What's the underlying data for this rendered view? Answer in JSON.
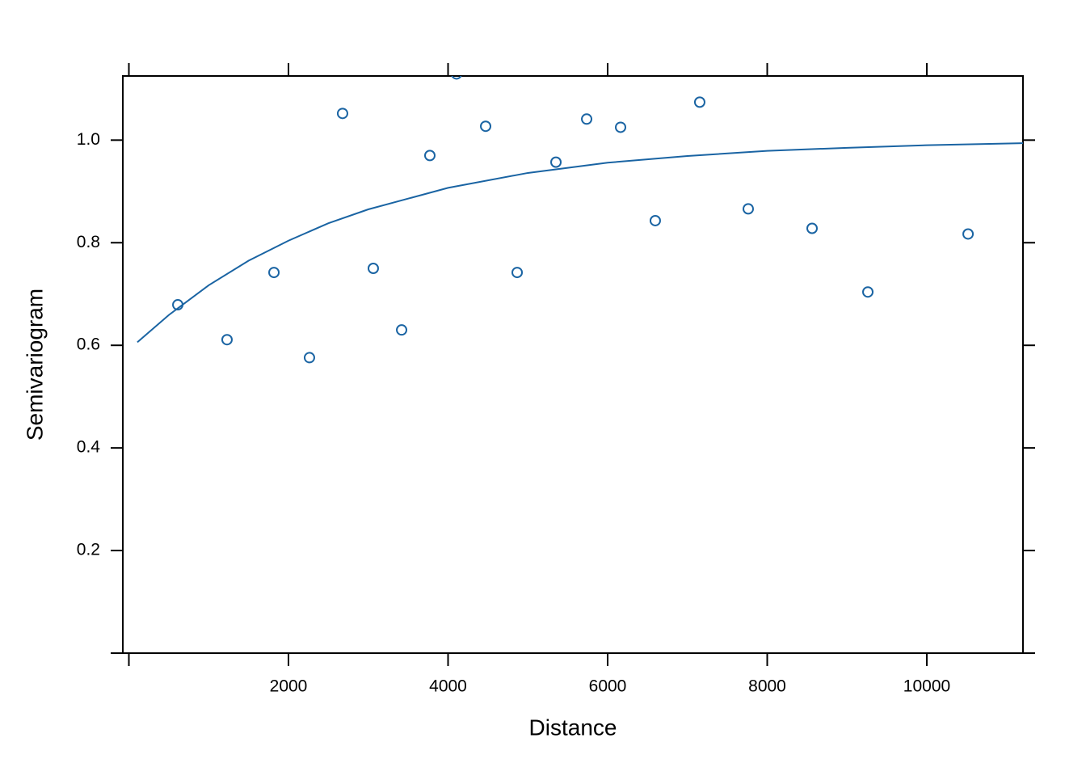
{
  "chart_data": {
    "type": "scatter",
    "x_label": "Distance",
    "y_label": "Semivariogram",
    "xlim": [
      -76,
      11205
    ],
    "ylim": [
      0,
      1.125
    ],
    "xticks": [
      {
        "value": 0,
        "label": null
      },
      2000,
      4000,
      6000,
      8000,
      10000
    ],
    "yticks": [
      {
        "value": 0,
        "label": null
      },
      0.2,
      0.4,
      0.6,
      0.8,
      {
        "value": 1,
        "label": "1.0"
      }
    ],
    "series": [
      {
        "type": "scatter",
        "color": "#1a64a3",
        "x": [
          613,
          1230,
          1818,
          2263,
          2678,
          3063,
          3418,
          3772,
          4106,
          4471,
          4866,
          5352,
          5737,
          6162,
          6597,
          7154,
          7762,
          8562,
          9261,
          10517
        ],
        "values": [
          0.679,
          0.611,
          0.742,
          0.576,
          1.052,
          0.75,
          0.63,
          0.97,
          1.129,
          1.027,
          0.742,
          0.957,
          1.041,
          1.025,
          0.843,
          1.074,
          0.866,
          0.828,
          0.704,
          0.817
        ]
      },
      {
        "type": "line",
        "color": "#1a64a3",
        "x": [
          106,
          500,
          1000,
          1500,
          2000,
          2500,
          3000,
          4000,
          5000,
          6000,
          7000,
          8000,
          9000,
          10000,
          11205
        ],
        "values": [
          0.606,
          0.659,
          0.717,
          0.765,
          0.804,
          0.838,
          0.865,
          0.907,
          0.936,
          0.956,
          0.969,
          0.979,
          0.985,
          0.99,
          0.994
        ]
      }
    ]
  }
}
